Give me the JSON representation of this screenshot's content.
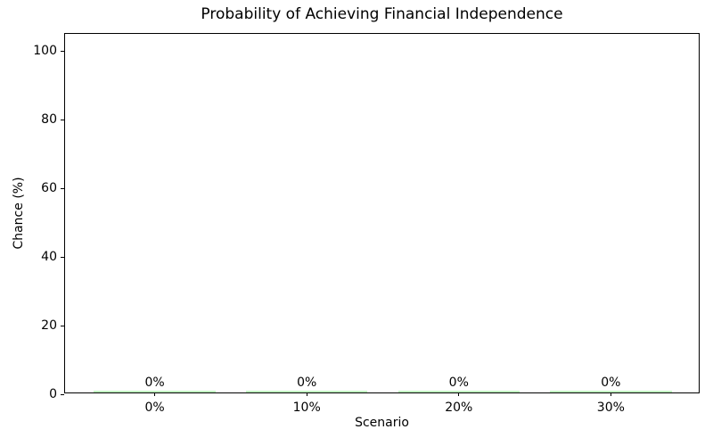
{
  "chart_data": {
    "type": "bar",
    "title": "Probability of Achieving Financial Independence",
    "xlabel": "Scenario",
    "ylabel": "Chance (%)",
    "categories": [
      "0%",
      "10%",
      "20%",
      "30%"
    ],
    "values": [
      0,
      0,
      0,
      0
    ],
    "bar_labels": [
      "0%",
      "0%",
      "0%",
      "0%"
    ],
    "yticks": [
      0,
      20,
      40,
      60,
      80,
      100
    ],
    "ylim": [
      0,
      105
    ],
    "xlim": [
      -0.59,
      3.59
    ],
    "bar_width_units": 0.8,
    "bar_color": "#90EE90",
    "spine_color": "#000000",
    "text_color": "#000000",
    "background_color": "#ffffff",
    "grid": false,
    "legend_position": "none"
  }
}
